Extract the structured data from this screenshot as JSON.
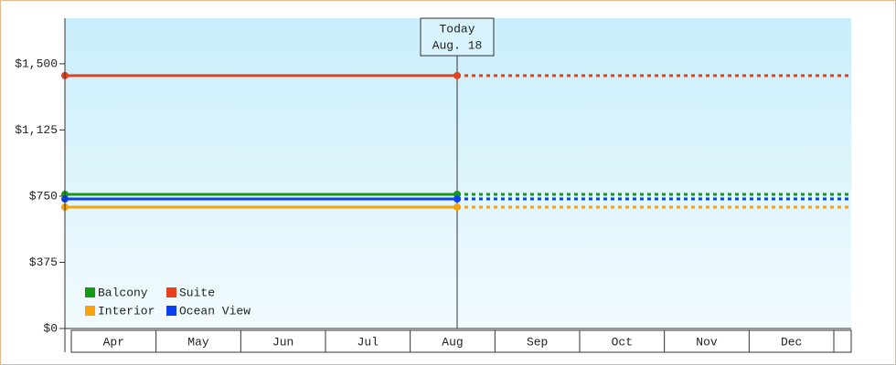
{
  "chart_data": {
    "type": "line",
    "categories": [
      "Apr",
      "May",
      "Jun",
      "Jul",
      "Aug",
      "Sep",
      "Oct",
      "Nov",
      "Dec"
    ],
    "series": [
      {
        "name": "Balcony",
        "color": "#159a15",
        "value": 760
      },
      {
        "name": "Suite",
        "color": "#e8401c",
        "value": 1433
      },
      {
        "name": "Interior",
        "color": "#f5a20c",
        "value": 688
      },
      {
        "name": "Ocean View",
        "color": "#0b3ff0",
        "value": 734
      }
    ],
    "annotation": [
      "Today",
      "Aug. 18"
    ],
    "ylim": [
      0,
      1758
    ],
    "yticks": [
      {
        "value": 0,
        "label": "$0"
      },
      {
        "value": 375,
        "label": "$375"
      },
      {
        "value": 750,
        "label": "$750"
      },
      {
        "value": 1125,
        "label": "$1,125"
      },
      {
        "value": 1500,
        "label": "$1,500"
      }
    ]
  }
}
